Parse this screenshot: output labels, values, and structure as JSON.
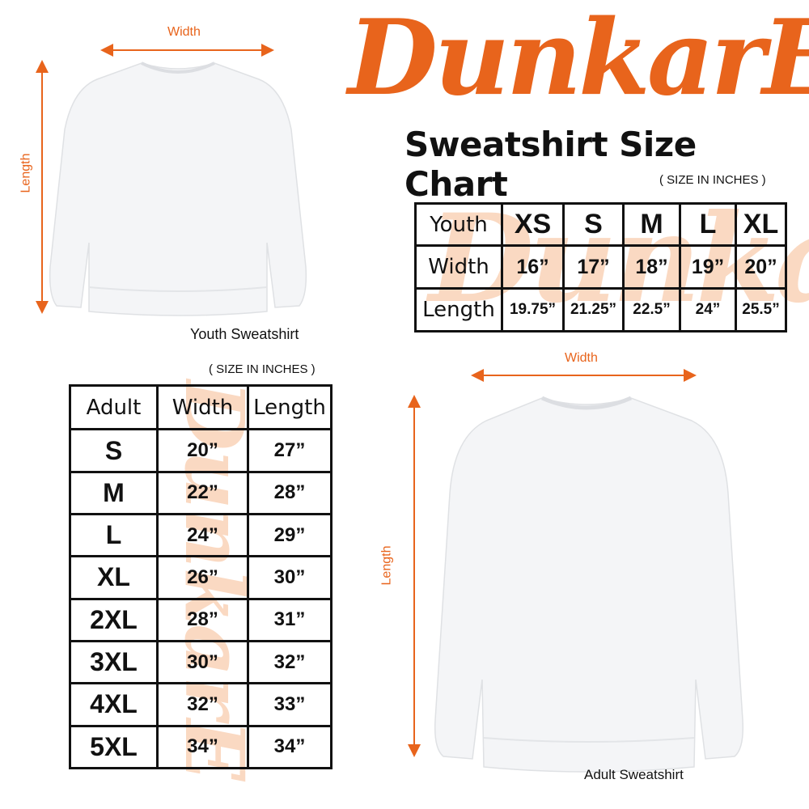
{
  "brand": {
    "logo_text": "DunkarE",
    "color": "#e8641c"
  },
  "title": "Sweatshirt Size Chart",
  "units_note": "( SIZE IN INCHES )",
  "youth": {
    "caption": "Youth Sweatshirt",
    "width_label": "Width",
    "length_label": "Length",
    "table": {
      "header": [
        "Youth",
        "XS",
        "S",
        "M",
        "L",
        "XL"
      ],
      "rows": [
        [
          "Width",
          "16”",
          "17”",
          "18”",
          "19”",
          "20”"
        ],
        [
          "Length",
          "19.75”",
          "21.25”",
          "22.5”",
          "24”",
          "25.5”"
        ]
      ]
    }
  },
  "adult": {
    "caption": "Adult Sweatshirt",
    "width_label": "Width",
    "length_label": "Length",
    "table": {
      "header": [
        "Adult",
        "Width",
        "Length"
      ],
      "rows": [
        [
          "S",
          "20”",
          "27”"
        ],
        [
          "M",
          "22”",
          "28”"
        ],
        [
          "L",
          "24”",
          "29”"
        ],
        [
          "XL",
          "26”",
          "30”"
        ],
        [
          "2XL",
          "28”",
          "31”"
        ],
        [
          "3XL",
          "30”",
          "32”"
        ],
        [
          "4XL",
          "32”",
          "33”"
        ],
        [
          "5XL",
          "34”",
          "34”"
        ]
      ]
    }
  }
}
